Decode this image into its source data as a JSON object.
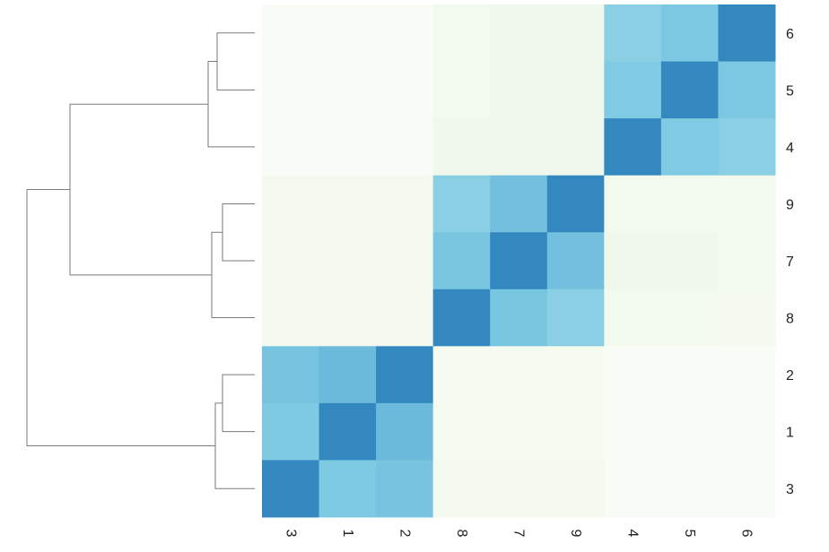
{
  "chart_data": {
    "type": "heatmap",
    "title": "",
    "xlabel": "",
    "ylabel": "",
    "column_labels": [
      "3",
      "1",
      "2",
      "8",
      "7",
      "9",
      "4",
      "5",
      "6"
    ],
    "row_labels": [
      "6",
      "5",
      "4",
      "9",
      "7",
      "8",
      "2",
      "1",
      "3"
    ],
    "values": [
      [
        0.01,
        0.01,
        0.01,
        0.07,
        0.08,
        0.08,
        0.5,
        0.56,
        0.88
      ],
      [
        0.01,
        0.01,
        0.01,
        0.07,
        0.08,
        0.08,
        0.54,
        0.88,
        0.56
      ],
      [
        0.01,
        0.01,
        0.01,
        0.08,
        0.09,
        0.08,
        0.88,
        0.54,
        0.5
      ],
      [
        0.06,
        0.06,
        0.06,
        0.5,
        0.6,
        0.88,
        0.07,
        0.07,
        0.07
      ],
      [
        0.06,
        0.06,
        0.06,
        0.57,
        0.88,
        0.6,
        0.08,
        0.08,
        0.07
      ],
      [
        0.06,
        0.06,
        0.06,
        0.88,
        0.57,
        0.5,
        0.07,
        0.07,
        0.06
      ],
      [
        0.58,
        0.63,
        0.88,
        0.04,
        0.04,
        0.04,
        0.01,
        0.01,
        0.01
      ],
      [
        0.55,
        0.88,
        0.63,
        0.04,
        0.04,
        0.04,
        0.01,
        0.01,
        0.01
      ],
      [
        0.88,
        0.55,
        0.58,
        0.05,
        0.05,
        0.05,
        0.01,
        0.01,
        0.01
      ]
    ],
    "color_range": [
      0,
      1
    ],
    "colors": {
      "low": "#fafdf7",
      "mid_low": "#eef7e8",
      "mid": "#7ecae3",
      "high": "#3388c0"
    },
    "row_dendrogram": {
      "side": "left",
      "leaf_order": [
        "6",
        "5",
        "4",
        "9",
        "7",
        "8",
        "2",
        "1",
        "3"
      ],
      "merges": [
        [
          "6",
          "5"
        ],
        [
          "6-5",
          "4"
        ],
        [
          "9",
          "7"
        ],
        [
          "9-7",
          "8"
        ],
        [
          "2",
          "1"
        ],
        [
          "2-1",
          "3"
        ],
        [
          "6-5-4",
          "9-7-8"
        ],
        [
          "6-5-4-9-7-8",
          "2-1-3"
        ]
      ]
    },
    "legend": "none",
    "grid": false
  }
}
